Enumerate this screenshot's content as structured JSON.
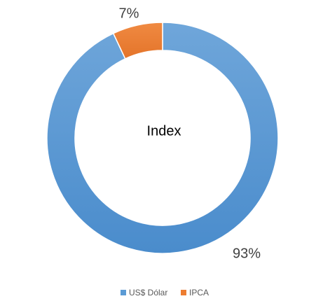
{
  "chart_data": {
    "type": "donut",
    "title": "Index",
    "categories": [
      "US$ Dólar",
      "IPCA"
    ],
    "values": [
      93,
      7
    ],
    "value_labels": [
      "93%",
      "7%"
    ],
    "colors": [
      "#5b9bd5",
      "#ed7d31"
    ],
    "legend": "bottom"
  }
}
